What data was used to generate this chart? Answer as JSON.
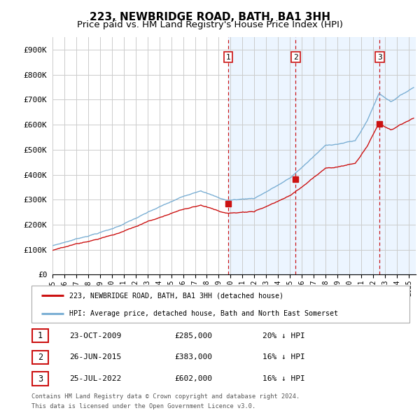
{
  "title": "223, NEWBRIDGE ROAD, BATH, BA1 3HH",
  "subtitle": "Price paid vs. HM Land Registry's House Price Index (HPI)",
  "title_fontsize": 11,
  "subtitle_fontsize": 9.5,
  "ylabel_ticks": [
    "£0",
    "£100K",
    "£200K",
    "£300K",
    "£400K",
    "£500K",
    "£600K",
    "£700K",
    "£800K",
    "£900K"
  ],
  "ytick_values": [
    0,
    100000,
    200000,
    300000,
    400000,
    500000,
    600000,
    700000,
    800000,
    900000
  ],
  "ylim": [
    0,
    950000
  ],
  "xlim_start": 1995.0,
  "xlim_end": 2025.6,
  "background_color": "#ffffff",
  "plot_bg_color": "#ffffff",
  "grid_color": "#cccccc",
  "hpi_line_color": "#7bafd4",
  "price_line_color": "#cc1111",
  "sale_marker_color": "#cc1111",
  "dashed_vline_color": "#cc1111",
  "shade_color": "#ddeeff",
  "legend_entries": [
    "223, NEWBRIDGE ROAD, BATH, BA1 3HH (detached house)",
    "HPI: Average price, detached house, Bath and North East Somerset"
  ],
  "sales": [
    {
      "date_num": 2009.81,
      "price": 285000,
      "label": "1",
      "date_str": "23-OCT-2009",
      "pct": "20%",
      "dir": "↓"
    },
    {
      "date_num": 2015.48,
      "price": 383000,
      "label": "2",
      "date_str": "26-JUN-2015",
      "pct": "16%",
      "dir": "↓"
    },
    {
      "date_num": 2022.56,
      "price": 602000,
      "label": "3",
      "date_str": "25-JUL-2022",
      "pct": "16%",
      "dir": "↓"
    }
  ],
  "footer_line1": "Contains HM Land Registry data © Crown copyright and database right 2024.",
  "footer_line2": "This data is licensed under the Open Government Licence v3.0.",
  "xtick_years": [
    1995,
    1996,
    1997,
    1998,
    1999,
    2000,
    2001,
    2002,
    2003,
    2004,
    2005,
    2006,
    2007,
    2008,
    2009,
    2010,
    2011,
    2012,
    2013,
    2014,
    2015,
    2016,
    2017,
    2018,
    2019,
    2020,
    2021,
    2022,
    2023,
    2024,
    2025
  ]
}
